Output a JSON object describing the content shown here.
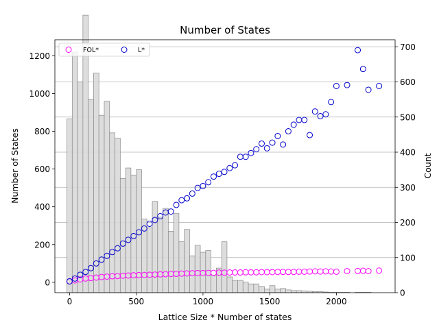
{
  "chart_data": {
    "type": "scatter",
    "title": "Number of States",
    "xlabel": "Lattice Size * Number of states",
    "ylabel": "Number of States",
    "y2label": "Count",
    "xlim": [
      -110,
      2440
    ],
    "ylim": [
      -55,
      1285
    ],
    "y2lim": [
      0,
      720
    ],
    "xticks": [
      0,
      500,
      1000,
      1500,
      2000
    ],
    "yticks": [
      0,
      200,
      400,
      600,
      800,
      1000,
      1200
    ],
    "y2ticks": [
      0,
      100,
      200,
      300,
      400,
      500,
      600,
      700
    ],
    "grid": "horizontal lines on secondary (Count) axis",
    "legend_position": "top-left",
    "colors": {
      "fol": "#ff00ff",
      "l": "#0000cc",
      "hist_fill": "#d9d9d9",
      "hist_edge": "#888888",
      "grid": "#b0b0b0"
    },
    "series": [
      {
        "name": "FOL*",
        "marker": "open-circle",
        "color": "#ff00ff",
        "points": [
          [
            0,
            5
          ],
          [
            40,
            10
          ],
          [
            80,
            15
          ],
          [
            120,
            20
          ],
          [
            160,
            22
          ],
          [
            200,
            25
          ],
          [
            240,
            28
          ],
          [
            280,
            30
          ],
          [
            320,
            32
          ],
          [
            360,
            33
          ],
          [
            400,
            35
          ],
          [
            440,
            36
          ],
          [
            480,
            37
          ],
          [
            520,
            38
          ],
          [
            560,
            39
          ],
          [
            600,
            40
          ],
          [
            640,
            41
          ],
          [
            680,
            42
          ],
          [
            720,
            43
          ],
          [
            760,
            44
          ],
          [
            800,
            45
          ],
          [
            840,
            46
          ],
          [
            880,
            47
          ],
          [
            920,
            48
          ],
          [
            960,
            49
          ],
          [
            1000,
            49
          ],
          [
            1040,
            50
          ],
          [
            1080,
            50
          ],
          [
            1120,
            51
          ],
          [
            1160,
            51
          ],
          [
            1200,
            52
          ],
          [
            1240,
            52
          ],
          [
            1280,
            52
          ],
          [
            1320,
            53
          ],
          [
            1360,
            53
          ],
          [
            1400,
            53
          ],
          [
            1440,
            54
          ],
          [
            1480,
            54
          ],
          [
            1520,
            54
          ],
          [
            1560,
            55
          ],
          [
            1600,
            55
          ],
          [
            1640,
            55
          ],
          [
            1680,
            55
          ],
          [
            1720,
            56
          ],
          [
            1760,
            56
          ],
          [
            1800,
            57
          ],
          [
            1840,
            58
          ],
          [
            1880,
            57
          ],
          [
            1920,
            58
          ],
          [
            1960,
            57
          ],
          [
            2000,
            56
          ],
          [
            2080,
            59
          ],
          [
            2160,
            60
          ],
          [
            2200,
            61
          ],
          [
            2240,
            59
          ],
          [
            2320,
            62
          ]
        ]
      },
      {
        "name": "L*",
        "marker": "open-circle",
        "color": "#0000cc",
        "points": [
          [
            0,
            5
          ],
          [
            40,
            20
          ],
          [
            80,
            40
          ],
          [
            120,
            55
          ],
          [
            160,
            75
          ],
          [
            200,
            100
          ],
          [
            240,
            120
          ],
          [
            280,
            140
          ],
          [
            320,
            160
          ],
          [
            360,
            180
          ],
          [
            400,
            205
          ],
          [
            440,
            225
          ],
          [
            480,
            245
          ],
          [
            520,
            265
          ],
          [
            560,
            285
          ],
          [
            600,
            310
          ],
          [
            640,
            330
          ],
          [
            680,
            350
          ],
          [
            720,
            370
          ],
          [
            760,
            375
          ],
          [
            800,
            410
          ],
          [
            840,
            435
          ],
          [
            880,
            445
          ],
          [
            920,
            470
          ],
          [
            960,
            500
          ],
          [
            1000,
            510
          ],
          [
            1040,
            530
          ],
          [
            1080,
            560
          ],
          [
            1120,
            575
          ],
          [
            1160,
            585
          ],
          [
            1200,
            605
          ],
          [
            1240,
            620
          ],
          [
            1280,
            665
          ],
          [
            1320,
            665
          ],
          [
            1360,
            685
          ],
          [
            1400,
            705
          ],
          [
            1440,
            735
          ],
          [
            1480,
            710
          ],
          [
            1520,
            740
          ],
          [
            1560,
            775
          ],
          [
            1600,
            730
          ],
          [
            1640,
            800
          ],
          [
            1680,
            835
          ],
          [
            1720,
            860
          ],
          [
            1760,
            860
          ],
          [
            1800,
            780
          ],
          [
            1840,
            905
          ],
          [
            1880,
            880
          ],
          [
            1920,
            890
          ],
          [
            1960,
            955
          ],
          [
            2000,
            1040
          ],
          [
            2080,
            1045
          ],
          [
            2160,
            1230
          ],
          [
            2200,
            1130
          ],
          [
            2240,
            1020
          ],
          [
            2320,
            1040
          ]
        ]
      },
      {
        "name": "Count",
        "type": "histogram",
        "axis": "secondary",
        "bin_width": 40,
        "bins": [
          [
            0,
            495
          ],
          [
            40,
            685
          ],
          [
            80,
            600
          ],
          [
            120,
            790
          ],
          [
            160,
            550
          ],
          [
            200,
            625
          ],
          [
            240,
            505
          ],
          [
            280,
            545
          ],
          [
            320,
            455
          ],
          [
            360,
            440
          ],
          [
            400,
            325
          ],
          [
            440,
            355
          ],
          [
            480,
            335
          ],
          [
            520,
            350
          ],
          [
            560,
            210
          ],
          [
            600,
            185
          ],
          [
            640,
            260
          ],
          [
            680,
            215
          ],
          [
            720,
            240
          ],
          [
            760,
            175
          ],
          [
            800,
            225
          ],
          [
            840,
            145
          ],
          [
            880,
            180
          ],
          [
            920,
            105
          ],
          [
            960,
            135
          ],
          [
            1000,
            115
          ],
          [
            1040,
            120
          ],
          [
            1080,
            50
          ],
          [
            1120,
            70
          ],
          [
            1160,
            145
          ],
          [
            1200,
            45
          ],
          [
            1240,
            35
          ],
          [
            1280,
            35
          ],
          [
            1320,
            30
          ],
          [
            1360,
            25
          ],
          [
            1400,
            25
          ],
          [
            1440,
            18
          ],
          [
            1480,
            10
          ],
          [
            1520,
            20
          ],
          [
            1560,
            10
          ],
          [
            1600,
            12
          ],
          [
            1640,
            8
          ],
          [
            1680,
            6
          ],
          [
            1720,
            6
          ],
          [
            1760,
            5
          ],
          [
            1800,
            4
          ],
          [
            1840,
            3
          ],
          [
            1880,
            3
          ],
          [
            1920,
            2
          ],
          [
            1960,
            1
          ],
          [
            2000,
            1
          ],
          [
            2040,
            1
          ],
          [
            2080,
            1
          ],
          [
            2120,
            0
          ],
          [
            2160,
            1
          ],
          [
            2200,
            1
          ],
          [
            2240,
            1
          ]
        ]
      }
    ]
  }
}
